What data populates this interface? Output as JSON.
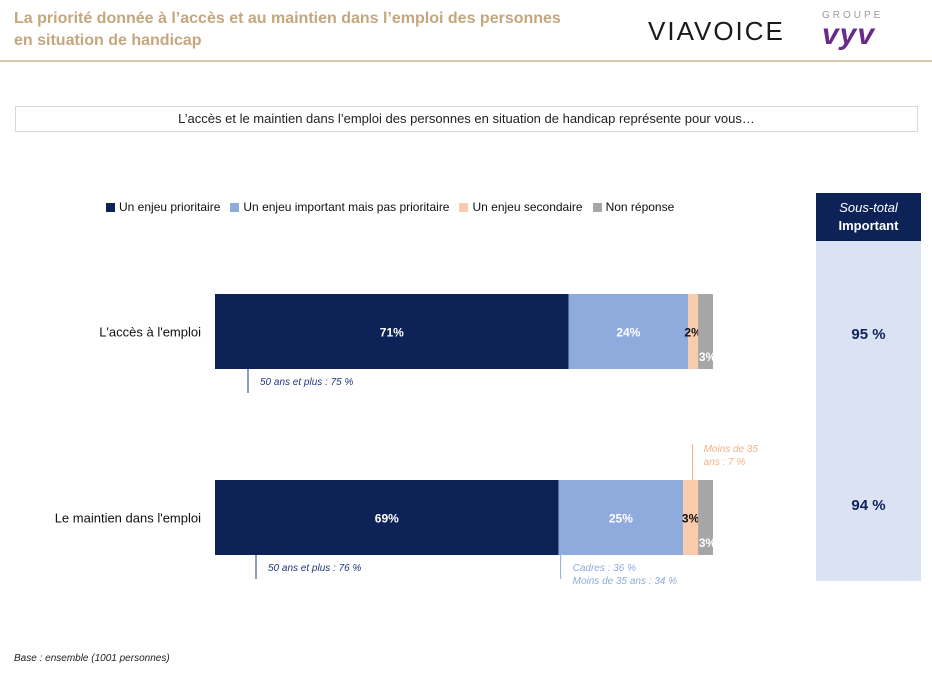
{
  "header": {
    "title": "La priorité donnée à l’accès et au maintien dans l’emploi des personnes en situation de handicap",
    "logo_viavoice": "VIAVOICE",
    "logo_groupe": "GROUPE",
    "logo_vyv": "vyv"
  },
  "question": "L’accès et le maintien dans l’emploi des personnes en situation de handicap représente pour vous…",
  "subtotal": {
    "header_line1": "Sous-total",
    "header_line2": "Important",
    "values": [
      "95 %",
      "94 %"
    ]
  },
  "base_note": "Base : ensemble (1001 personnes)",
  "colors": {
    "prioritaire": "#0d2358",
    "important": "#8faadc",
    "secondaire": "#f8cbad",
    "non_reponse": "#a6a6a6",
    "accent_gold": "#c4a77d"
  },
  "chart_data": {
    "type": "bar",
    "orientation": "horizontal",
    "stacked": true,
    "categories": [
      "L'accès à l'emploi",
      "Le maintien dans l'emploi"
    ],
    "series": [
      {
        "name": "Un enjeu prioritaire",
        "values": [
          71,
          69
        ],
        "labels": [
          "71%",
          "69%"
        ]
      },
      {
        "name": "Un enjeu important mais pas prioritaire",
        "values": [
          24,
          25
        ],
        "labels": [
          "24%",
          "25%"
        ]
      },
      {
        "name": "Un enjeu secondaire",
        "values": [
          2,
          3
        ],
        "labels": [
          "2%",
          "3%"
        ]
      },
      {
        "name": "Non réponse",
        "values": [
          3,
          3
        ],
        "labels": [
          "3%",
          "3%"
        ]
      }
    ],
    "legend_position": "top",
    "annotations": [
      {
        "category": 0,
        "series": 0,
        "position": "below",
        "lines": [
          "50 ans et plus : 75 %"
        ]
      },
      {
        "category": 1,
        "series": 0,
        "position": "below",
        "lines": [
          "50 ans et plus : 76 %"
        ]
      },
      {
        "category": 1,
        "series": 1,
        "position": "below",
        "lines": [
          "Cadres : 36 %",
          "Moins de 35 ans : 34 %"
        ]
      },
      {
        "category": 1,
        "series": 2,
        "position": "above",
        "lines": [
          "Moins de 35",
          "ans : 7 %"
        ]
      }
    ]
  }
}
